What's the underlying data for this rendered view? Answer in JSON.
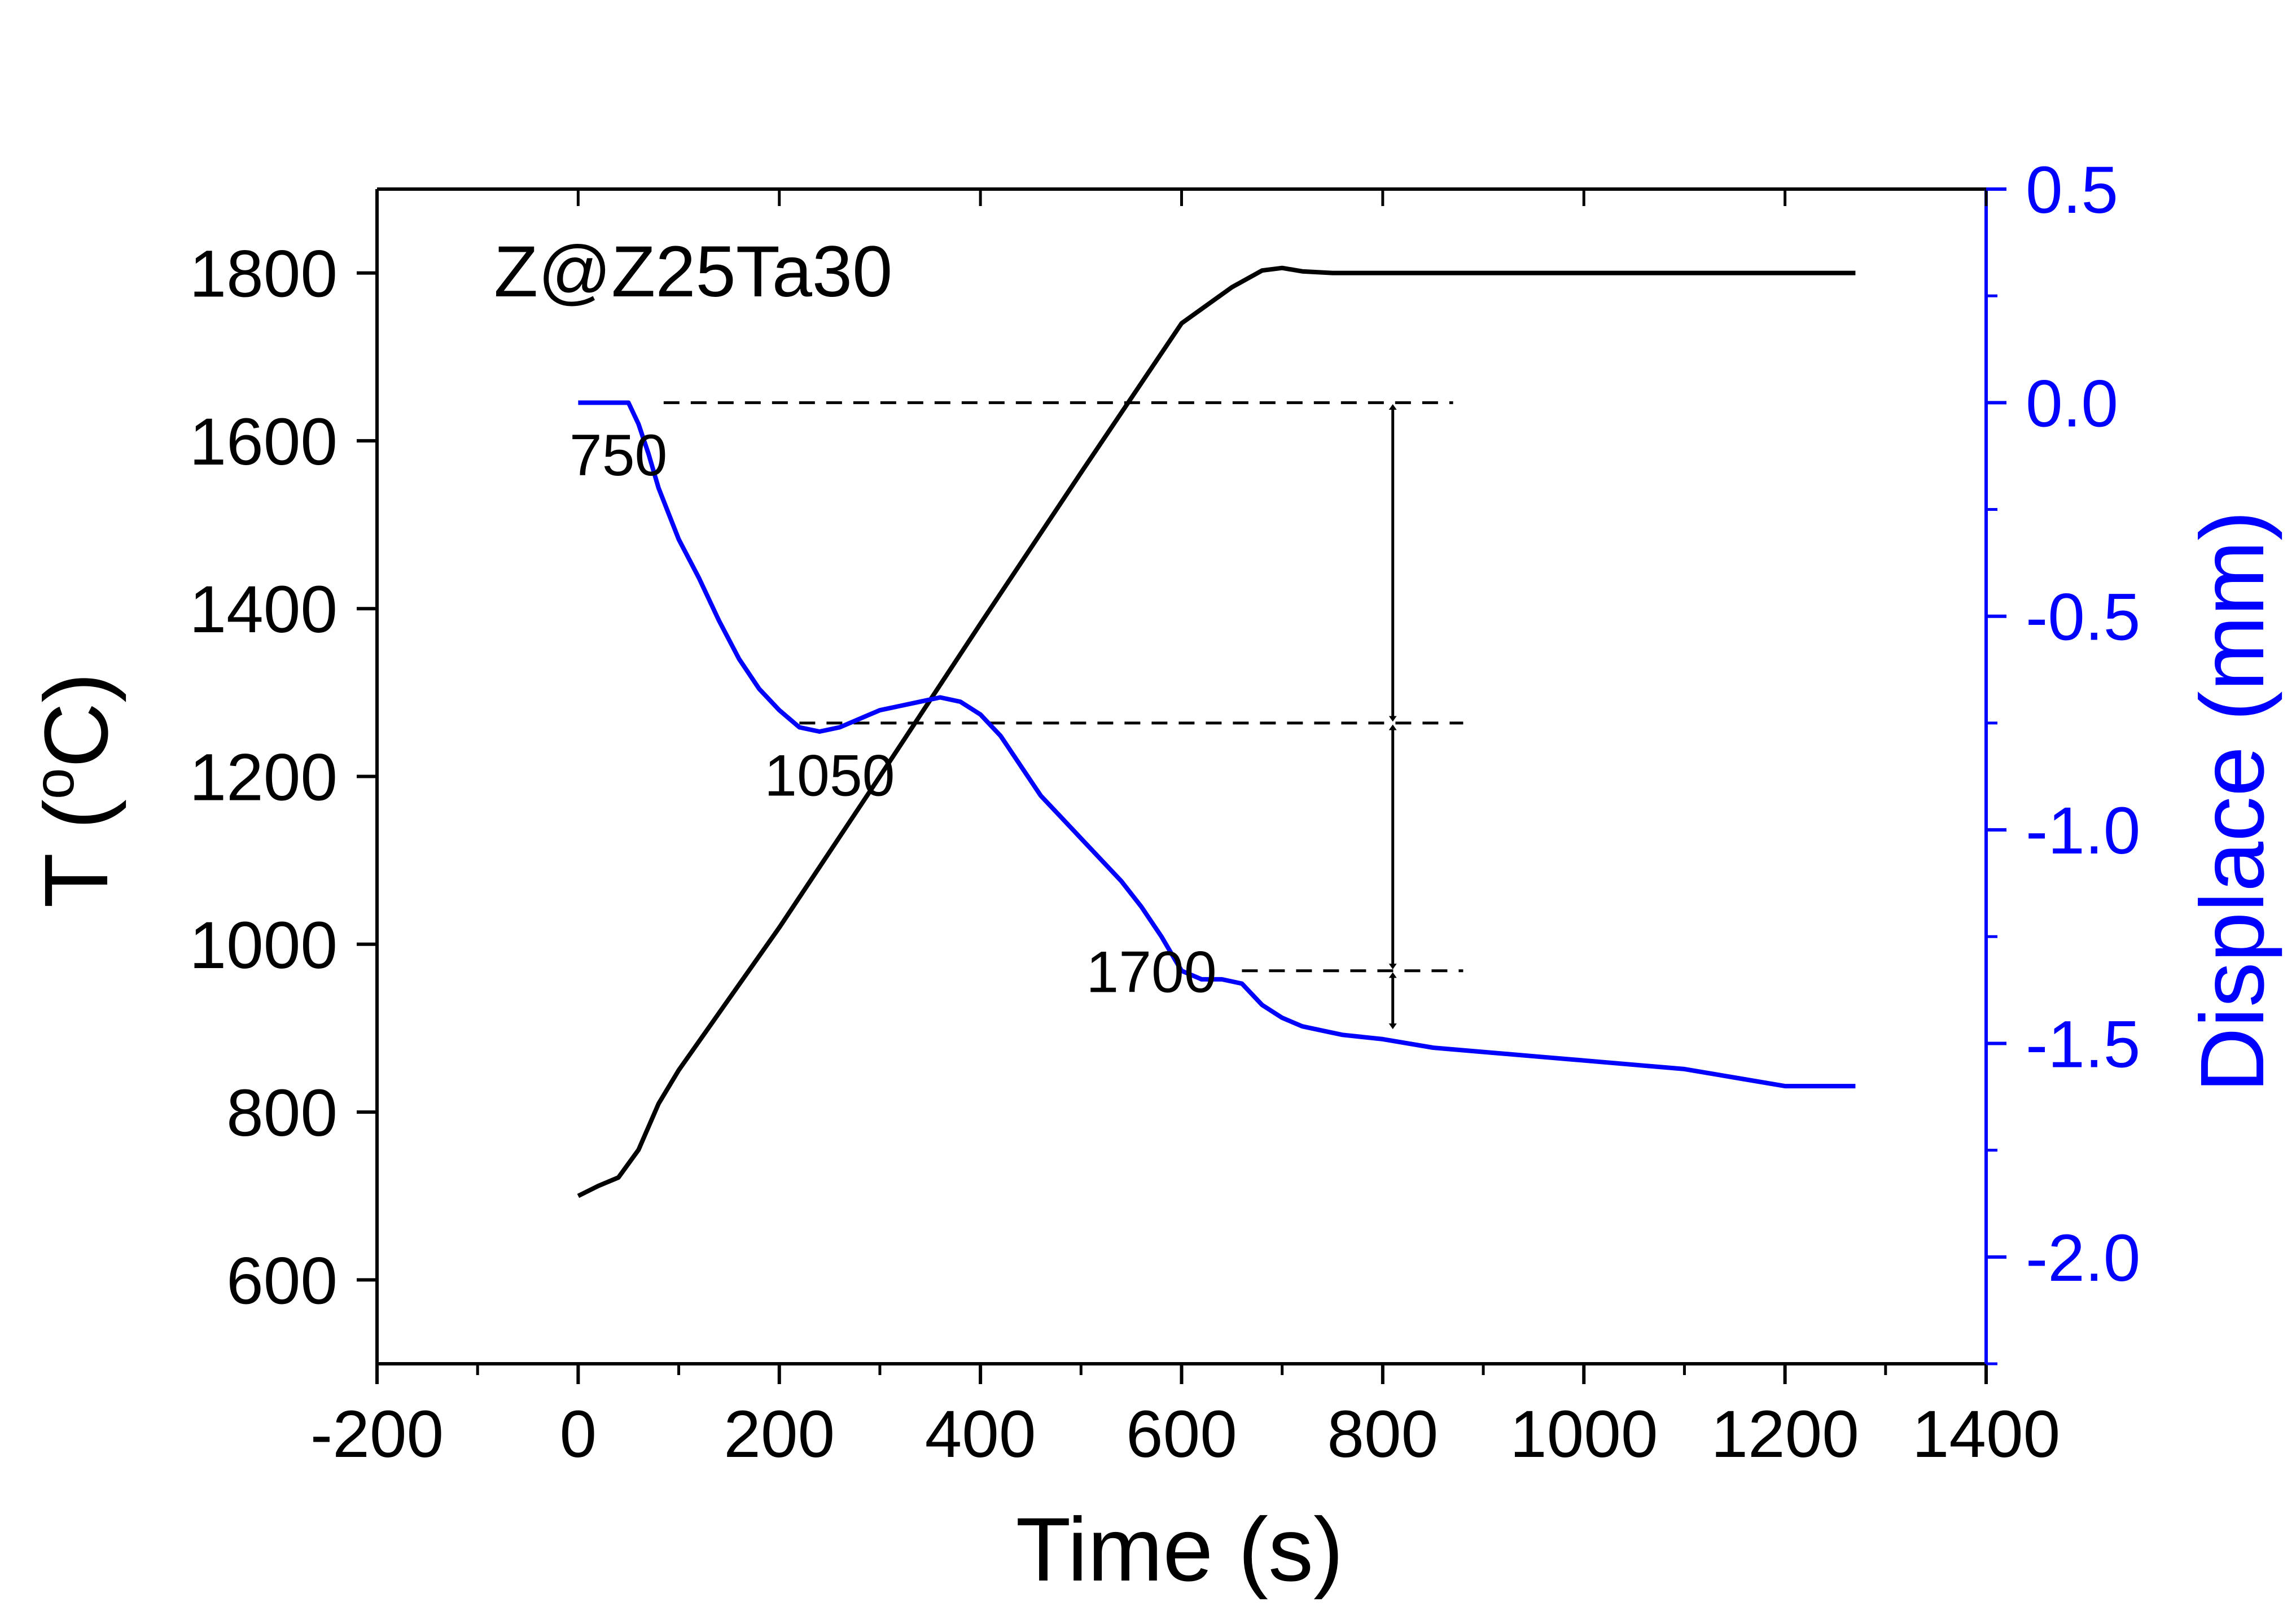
{
  "chart_data": {
    "type": "line",
    "title": "",
    "sample_label": "Z@Z25Ta30",
    "xlabel": "Time (s)",
    "ylabel_left_main": "T (",
    "ylabel_left_sup": "o",
    "ylabel_left_tail": "C)",
    "ylabel_right": "Displace (mm)",
    "xlim": [
      -200,
      1400
    ],
    "ylim_left": [
      500,
      1900
    ],
    "ylim_right": [
      -2.25,
      0.5
    ],
    "x_ticks": [
      -200,
      0,
      200,
      400,
      600,
      800,
      1000,
      1200,
      1400
    ],
    "y_left_ticks": [
      600,
      800,
      1000,
      1200,
      1400,
      1600,
      1800
    ],
    "y_right_ticks": [
      -2.0,
      -1.5,
      -1.0,
      -0.5,
      0.0,
      0.5
    ],
    "y_right_tick_labels": [
      "-2.0",
      "-1.5",
      "-1.0",
      "-0.5",
      "0.0",
      "0.5"
    ],
    "colors": {
      "temperature": "#000000",
      "displacement": "#0000ff",
      "axes": "#000000"
    },
    "series": [
      {
        "name": "Temperature",
        "axis": "left",
        "x": [
          0,
          20,
          40,
          60,
          80,
          100,
          150,
          200,
          300,
          400,
          500,
          600,
          650,
          680,
          700,
          720,
          750,
          800,
          1000,
          1200,
          1270
        ],
        "y": [
          700,
          712,
          722,
          755,
          810,
          850,
          935,
          1020,
          1200,
          1382,
          1562,
          1740,
          1783,
          1803,
          1806,
          1802,
          1800,
          1800,
          1800,
          1800,
          1800
        ]
      },
      {
        "name": "Displacement",
        "axis": "right",
        "x": [
          0,
          10,
          20,
          30,
          40,
          50,
          60,
          70,
          80,
          100,
          120,
          140,
          160,
          180,
          200,
          220,
          240,
          260,
          280,
          300,
          320,
          340,
          360,
          380,
          400,
          420,
          440,
          460,
          480,
          500,
          520,
          540,
          560,
          580,
          600,
          620,
          640,
          660,
          680,
          700,
          720,
          740,
          760,
          800,
          850,
          900,
          950,
          1000,
          1050,
          1100,
          1150,
          1200,
          1270
        ],
        "y": [
          0.0,
          0.0,
          0.0,
          0.0,
          0.0,
          0.0,
          -0.05,
          -0.12,
          -0.2,
          -0.32,
          -0.41,
          -0.51,
          -0.6,
          -0.67,
          -0.72,
          -0.76,
          -0.77,
          -0.76,
          -0.74,
          -0.72,
          -0.71,
          -0.7,
          -0.69,
          -0.7,
          -0.73,
          -0.78,
          -0.85,
          -0.92,
          -0.97,
          -1.02,
          -1.07,
          -1.12,
          -1.18,
          -1.25,
          -1.33,
          -1.35,
          -1.35,
          -1.36,
          -1.41,
          -1.44,
          -1.46,
          -1.47,
          -1.48,
          -1.49,
          -1.51,
          -1.52,
          -1.53,
          -1.54,
          -1.55,
          -1.56,
          -1.58,
          -1.6,
          -1.6
        ]
      }
    ],
    "annotations": [
      {
        "text": "750",
        "x": 40,
        "y_right": -0.17
      },
      {
        "text": "1050",
        "x": 250,
        "y_right": -0.92
      },
      {
        "text": "1700",
        "x": 570,
        "y_right": -1.38
      }
    ],
    "reference_lines": [
      {
        "y_right": 0.0,
        "x_start": 85,
        "x_end": 870
      },
      {
        "y_right": -0.75,
        "x_start": 220,
        "x_end": 880
      },
      {
        "y_right": -1.33,
        "x_start": 660,
        "x_end": 880
      }
    ],
    "arrows": [
      {
        "x": 810,
        "y_right_from": -0.01,
        "y_right_to": -0.74
      },
      {
        "x": 810,
        "y_right_from": -0.76,
        "y_right_to": -1.32
      },
      {
        "x": 810,
        "y_right_from": -1.34,
        "y_right_to": -1.46
      }
    ]
  }
}
